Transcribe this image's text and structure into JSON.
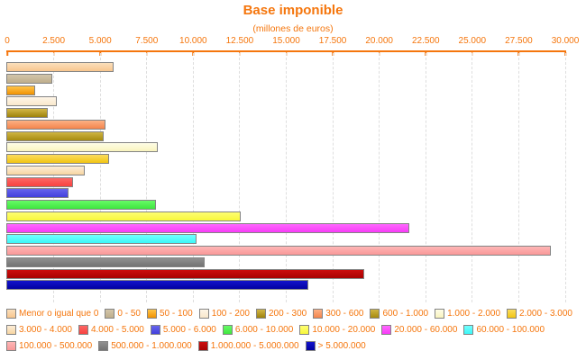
{
  "chart_data": {
    "type": "bar",
    "orientation": "horizontal",
    "title": "Base imponible",
    "subtitle": "(millones de euros)",
    "unit": "millones de euros",
    "xlim": [
      0,
      30000
    ],
    "grid": "vertical-dashed",
    "legend_position": "bottom",
    "x_ticks": [
      {
        "value": 0,
        "label": "0"
      },
      {
        "value": 2500,
        "label": "2.500"
      },
      {
        "value": 5000,
        "label": "5.000"
      },
      {
        "value": 7500,
        "label": "7.500"
      },
      {
        "value": 10000,
        "label": "10.000"
      },
      {
        "value": 12500,
        "label": "12.500"
      },
      {
        "value": 15000,
        "label": "15.000"
      },
      {
        "value": 17500,
        "label": "17.500"
      },
      {
        "value": 20000,
        "label": "20.000"
      },
      {
        "value": 22500,
        "label": "22.500"
      },
      {
        "value": 25000,
        "label": "25.000"
      },
      {
        "value": 27500,
        "label": "27.500"
      },
      {
        "value": 30000,
        "label": "30.000"
      }
    ],
    "bars": [
      {
        "label": "Menor o igual que 0",
        "value": 5780,
        "color_top": "#FBDFBC",
        "color_bottom": "#F8C68E"
      },
      {
        "label": "0 - 50",
        "value": 2460,
        "color_top": "#D2C5AA",
        "color_bottom": "#BFAE8C"
      },
      {
        "label": "50 - 100",
        "value": 1570,
        "color_top": "#FFC449",
        "color_bottom": "#F09202"
      },
      {
        "label": "100 - 200",
        "value": 2710,
        "color_top": "#FEF5E7",
        "color_bottom": "#F9E8CB"
      },
      {
        "label": "200 - 300",
        "value": 2250,
        "color_top": "#D2B747",
        "color_bottom": "#9E820B"
      },
      {
        "label": "300 - 600",
        "value": 5320,
        "color_top": "#FCB084",
        "color_bottom": "#F4854C"
      },
      {
        "label": "600 - 1.000",
        "value": 5220,
        "color_top": "#CFB542",
        "color_bottom": "#A78B10"
      },
      {
        "label": "1.000 - 2.000",
        "value": 8130,
        "color_top": "#FEFDE6",
        "color_bottom": "#F9F4BE"
      },
      {
        "label": "2.000 - 3.000",
        "value": 5510,
        "color_top": "#FBDC5E",
        "color_bottom": "#F2C514"
      },
      {
        "label": "3.000 - 4.000",
        "value": 4220,
        "color_top": "#FCEDD8",
        "color_bottom": "#F7D5A1"
      },
      {
        "label": "4.000 - 5.000",
        "value": 3570,
        "color_top": "#FC6765",
        "color_bottom": "#F84240"
      },
      {
        "label": "5.000 - 6.000",
        "value": 3340,
        "color_top": "#6664ED",
        "color_bottom": "#4240DC"
      },
      {
        "label": "6.000 - 10.000",
        "value": 8060,
        "color_top": "#67FA67",
        "color_bottom": "#3FE63F"
      },
      {
        "label": "10.000 - 20.000",
        "value": 12620,
        "color_top": "#FEFE72",
        "color_bottom": "#F7F73C"
      },
      {
        "label": "20.000 - 60.000",
        "value": 21680,
        "color_top": "#FE67FE",
        "color_bottom": "#F73CF7"
      },
      {
        "label": "60.000 - 100.000",
        "value": 10230,
        "color_top": "#72FEFE",
        "color_bottom": "#3CF7F7"
      },
      {
        "label": "100.000 - 500.000",
        "value": 29270,
        "color_top": "#FEB6B6",
        "color_bottom": "#F99898"
      },
      {
        "label": "500.000 - 1.000.000",
        "value": 10660,
        "color_top": "#909090",
        "color_bottom": "#737373"
      },
      {
        "label": "1.000.000 - 5.000.000",
        "value": 19230,
        "color_top": "#CC0D0D",
        "color_bottom": "#A80202"
      },
      {
        "label": "> 5.000.000",
        "value": 16250,
        "color_top": "#1414CC",
        "color_bottom": "#0202A2"
      }
    ]
  },
  "colors": {
    "accent_orange": "#F5760D",
    "grid": "#DEDEDE",
    "bar_border": "#848484",
    "background": "#FFFFFF"
  }
}
